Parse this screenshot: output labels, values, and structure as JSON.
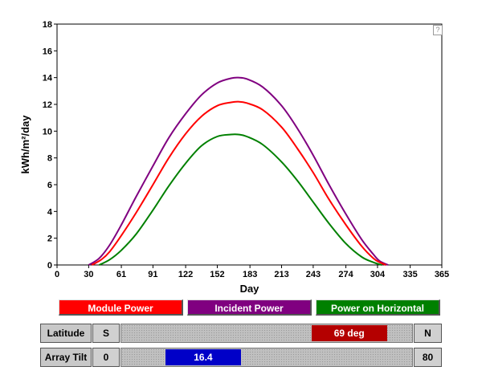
{
  "chart_data": {
    "type": "line",
    "title": "",
    "xlabel": "Day",
    "ylabel": "kWh/m²/day",
    "xlim": [
      0,
      365
    ],
    "ylim": [
      0,
      18
    ],
    "xticks": [
      0,
      30,
      61,
      91,
      122,
      152,
      183,
      213,
      243,
      274,
      304,
      335,
      365
    ],
    "yticks": [
      0,
      2,
      4,
      6,
      8,
      10,
      12,
      14,
      16,
      18
    ],
    "grid": false,
    "series": [
      {
        "name": "Incident Power",
        "color": "#800080",
        "x": [
          30,
          40,
          50,
          61,
          75,
          91,
          106,
          122,
          137,
          152,
          165,
          172,
          180,
          195,
          213,
          228,
          243,
          258,
          274,
          289,
          300,
          306,
          314
        ],
        "y": [
          0,
          0.5,
          1.5,
          3.0,
          5.1,
          7.4,
          9.5,
          11.3,
          12.7,
          13.6,
          13.95,
          14.0,
          13.9,
          13.3,
          11.9,
          10.2,
          8.2,
          6.0,
          3.8,
          1.9,
          0.8,
          0.3,
          0
        ]
      },
      {
        "name": "Module Power",
        "color": "#ff0000",
        "x": [
          33,
          42,
          50,
          61,
          75,
          91,
          106,
          122,
          137,
          152,
          165,
          172,
          180,
          195,
          213,
          228,
          243,
          258,
          274,
          289,
          300,
          306,
          312
        ],
        "y": [
          0,
          0.4,
          1.0,
          2.2,
          3.9,
          6.0,
          8.0,
          9.8,
          11.1,
          11.9,
          12.15,
          12.2,
          12.1,
          11.6,
          10.3,
          8.7,
          6.9,
          4.9,
          3.0,
          1.4,
          0.5,
          0.2,
          0
        ]
      },
      {
        "name": "Power on Horizontal",
        "color": "#008000",
        "x": [
          40,
          50,
          61,
          75,
          91,
          106,
          122,
          137,
          152,
          165,
          172,
          180,
          195,
          213,
          228,
          243,
          258,
          274,
          289,
          300,
          308
        ],
        "y": [
          0,
          0.4,
          1.1,
          2.3,
          4.1,
          5.9,
          7.6,
          8.9,
          9.6,
          9.75,
          9.75,
          9.6,
          9.0,
          7.7,
          6.3,
          4.7,
          3.1,
          1.6,
          0.6,
          0.2,
          0
        ]
      }
    ]
  },
  "legend_buttons": [
    {
      "label": "Module Power",
      "color": "#ff0000"
    },
    {
      "label": "Incident Power",
      "color": "#800080"
    },
    {
      "label": "Power on Horizontal",
      "color": "#008000"
    }
  ],
  "help_icon_text": "?",
  "latitude": {
    "label": "Latitude",
    "min_label": "S",
    "max_label": "N",
    "value_text": "69 deg",
    "value": 69,
    "min": -90,
    "max": 90,
    "thumb_color": "#b40000"
  },
  "array_tilt": {
    "label": "Array Tilt",
    "min_label": "0",
    "max_label": "80",
    "value_text": "16.4",
    "value": 16.4,
    "min": 0,
    "max": 80,
    "thumb_color": "#0000c8"
  }
}
